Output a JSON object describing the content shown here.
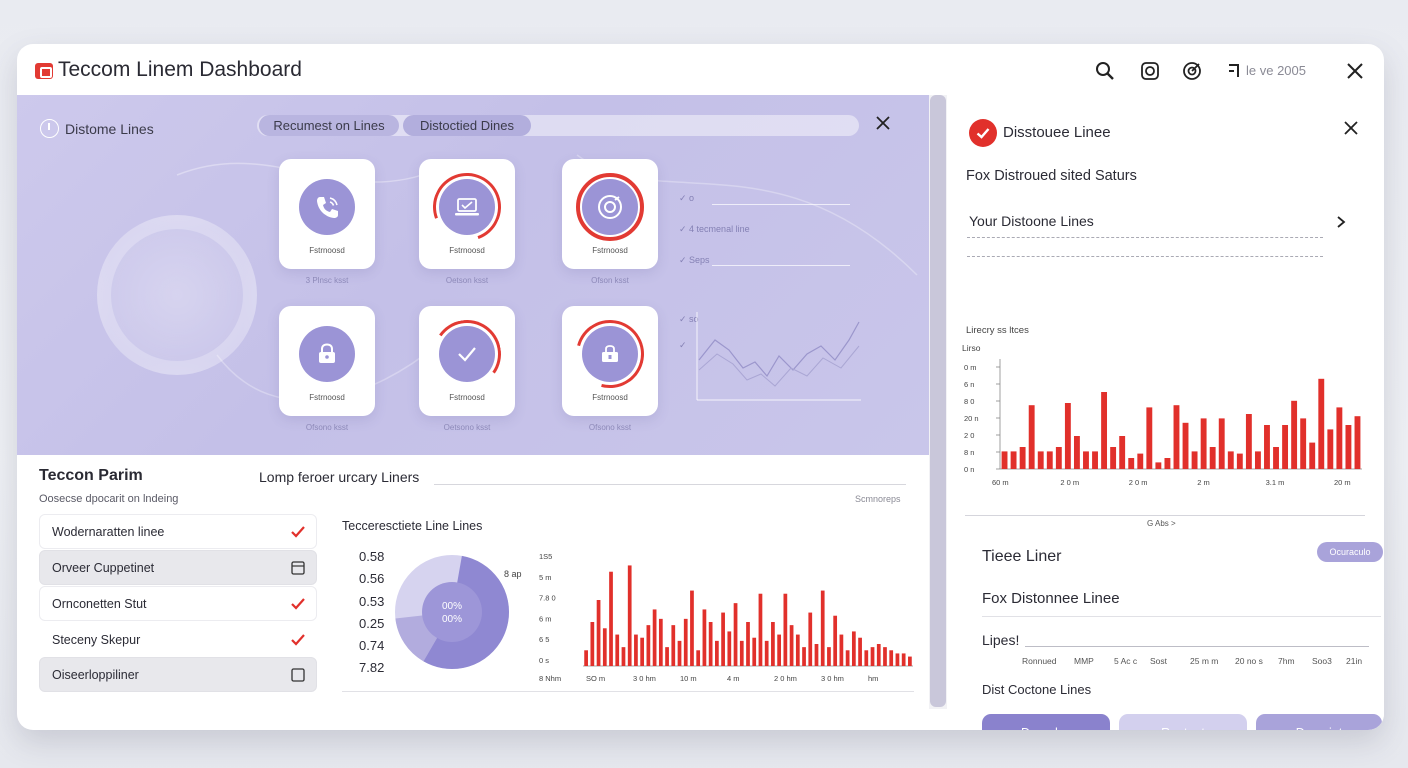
{
  "window": {
    "title": "Teccom Linem Dashboard",
    "version": "le ve 2005"
  },
  "hero": {
    "label": "Distome Lines",
    "tabs": [
      "Recumest on Lines",
      "Distoctied Dines"
    ],
    "cards": [
      {
        "icon": "phone-icon",
        "caption": "Fstrnoosd",
        "sub": "3 Plnsc ksst"
      },
      {
        "icon": "laptop-icon",
        "caption": "Fstrnoosd",
        "sub": "Oetson ksst"
      },
      {
        "icon": "target-icon",
        "caption": "Fstrnoosd",
        "sub": "Ofson ksst"
      },
      {
        "icon": "lock-icon",
        "caption": "Fstrnoosd",
        "sub": "Ofsono ksst"
      },
      {
        "icon": "check-icon",
        "caption": "Fstrnoosd",
        "sub": "Oetsono ksst"
      },
      {
        "icon": "folder-lock-icon",
        "caption": "Fstrnoosd",
        "sub": "Ofsono ksst"
      }
    ],
    "checklist": [
      "o",
      "4 tecmenal line",
      "Seps",
      "so",
      ""
    ]
  },
  "params": {
    "title": "Teccon Parim",
    "subtitle": "Oosecse dpocarit on lndeing",
    "items": [
      {
        "label": "Wodernaratten linee",
        "mark": "check"
      },
      {
        "label": "Orveer Cuppetinet",
        "mark": "box"
      },
      {
        "label": "Ornconetten Stut",
        "mark": "check"
      },
      {
        "label": "Steceny Skepur",
        "mark": "check"
      },
      {
        "label": "Oiseerloppiliner",
        "mark": "box"
      }
    ]
  },
  "lamp": {
    "title": "Lomp feroer urcary Liners",
    "right_label": "Scmnoreps",
    "mini_title": "Tecceresctiete Line Lines",
    "values": [
      "0.58",
      "0.56",
      "0.53",
      "0.25",
      "0.74",
      "7.82"
    ],
    "donut_center_top": "00%",
    "donut_center_bottom": "00%",
    "donut_side": "8 ap",
    "colors": {
      "accent": "#e1302b",
      "purple": "#8f88d2"
    }
  },
  "right": {
    "title": "Disstouee Linee",
    "subtitle": "Fox Distroued sited Saturs",
    "row": "Your Distoone Lines",
    "chart_label": "Lirecry ss ltces",
    "note": "G Abs >",
    "section_title": "Tieee Liner",
    "pill": "Ocuraculo",
    "section2": "Fox Distonnee Linee",
    "lipes": "Lipes!",
    "ticks": [
      "Ronnued",
      "MMP",
      "5 Ac c",
      "Sost",
      "25 m m",
      "20 no s",
      "7hm",
      "Soo3",
      "21in"
    ],
    "dist": "Dist Coctone Lines",
    "buttons": [
      "Doandse",
      "Rontunt",
      "Demoint"
    ]
  },
  "chart_data": [
    {
      "type": "bar",
      "title": "",
      "ylabel": "Lirso",
      "y_ticks": [
        "0 m",
        "6 n",
        "8 0",
        "20 n",
        "2 0",
        "8 n",
        "0 n"
      ],
      "x_ticks": [
        "60 m",
        "2 0 m",
        "2 0 m",
        "2 m",
        "3.1 m",
        "20 m"
      ],
      "values": [
        16,
        16,
        20,
        58,
        16,
        16,
        20,
        60,
        30,
        16,
        16,
        70,
        20,
        30,
        10,
        14,
        56,
        6,
        10,
        58,
        42,
        16,
        46,
        20,
        46,
        16,
        14,
        50,
        16,
        40,
        20,
        40,
        62,
        46,
        24,
        82,
        36,
        56,
        40,
        48
      ],
      "ylim": [
        0,
        100
      ]
    },
    {
      "type": "bar",
      "title": "",
      "y_ticks": [
        "1S5",
        "5 m",
        "7.8 0",
        "6 m",
        "6 5",
        "0 s"
      ],
      "x_ticks": [
        "8 Nhm",
        "SO m",
        "3 0 hm",
        "10 m",
        "4 m",
        "2 0 hm",
        "3 0 hm",
        "hm"
      ],
      "values": [
        10,
        28,
        42,
        24,
        60,
        20,
        12,
        64,
        20,
        18,
        26,
        36,
        30,
        12,
        26,
        16,
        30,
        48,
        10,
        36,
        28,
        16,
        34,
        22,
        40,
        16,
        28,
        18,
        46,
        16,
        28,
        20,
        46,
        26,
        20,
        12,
        34,
        14,
        48,
        12,
        32,
        20,
        10,
        22,
        18,
        10,
        12,
        14,
        12,
        10,
        8,
        8,
        6
      ]
    }
  ]
}
